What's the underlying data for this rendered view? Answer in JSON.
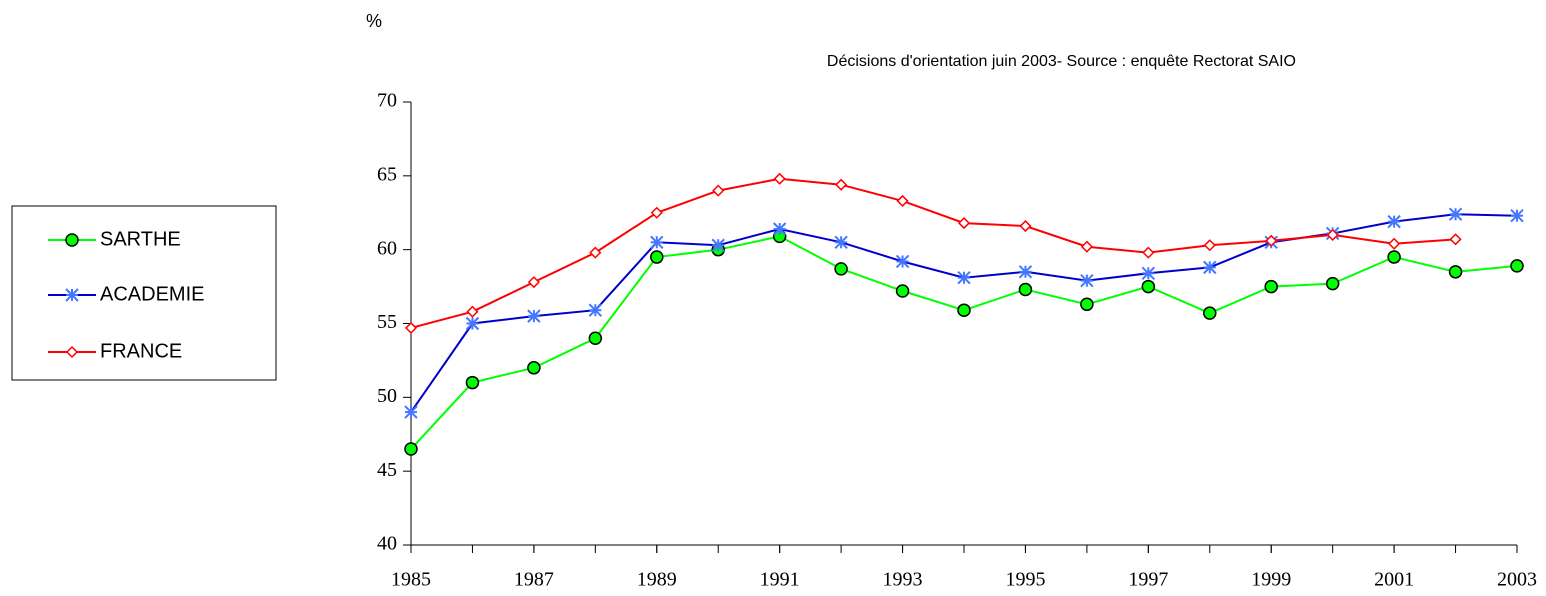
{
  "chart_data": {
    "type": "line",
    "ylabel": "%",
    "subtitle": "Décisions d'orientation juin  2003- Source : enquête Rectorat SAIO",
    "x": [
      1985,
      1986,
      1987,
      1988,
      1989,
      1990,
      1991,
      1992,
      1993,
      1994,
      1995,
      1996,
      1997,
      1998,
      1999,
      2000,
      2001,
      2002,
      2003
    ],
    "xlim": [
      1985,
      2003
    ],
    "xticks": [
      1985,
      1987,
      1989,
      1991,
      1993,
      1995,
      1997,
      1999,
      2001,
      2003
    ],
    "ylim": [
      40,
      70
    ],
    "yticks": [
      40,
      45,
      50,
      55,
      60,
      65,
      70
    ],
    "legend": "left",
    "series": [
      {
        "name": "SARTHE",
        "color": "#00ff00",
        "marker": "circle",
        "values": [
          46.5,
          51,
          52,
          54,
          59.5,
          60,
          60.9,
          58.7,
          57.2,
          55.9,
          57.3,
          56.3,
          57.5,
          55.7,
          57.5,
          57.7,
          59.5,
          58.5,
          58.9
        ]
      },
      {
        "name": "ACADEMIE",
        "color": "#0000cc",
        "marker": "asterisk",
        "values": [
          49,
          55,
          55.5,
          55.9,
          60.5,
          60.3,
          61.4,
          60.5,
          59.2,
          58.1,
          58.5,
          57.9,
          58.4,
          58.8,
          60.5,
          61.1,
          61.9,
          62.4,
          62.3
        ]
      },
      {
        "name": "FRANCE",
        "color": "#ff0000",
        "marker": "diamond",
        "values": [
          54.7,
          55.8,
          57.8,
          59.8,
          62.5,
          64,
          64.8,
          64.4,
          63.3,
          61.8,
          61.6,
          60.2,
          59.8,
          60.3,
          60.6,
          61,
          60.4,
          60.7,
          null
        ]
      }
    ]
  }
}
